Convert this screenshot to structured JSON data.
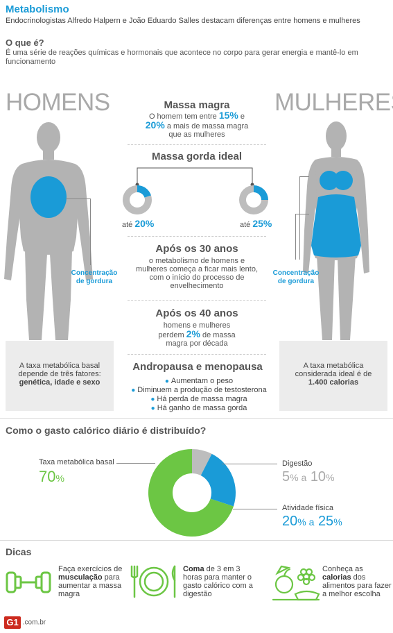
{
  "header": {
    "title": "Metabolismo",
    "subtitle": "Endocrinologistas Alfredo Halpern e João Eduardo Salles destacam diferenças entre homens e mulheres",
    "question": "O que é?",
    "answer": "É uma série de reações químicas e hormonais que acontece no corpo para gerar energia e mantê-lo em funcionamento"
  },
  "men": {
    "label": "HOMENS",
    "fat_label": "Concentração de gordura",
    "box_text_1": "A taxa metabólica basal depende de três fatores:",
    "box_text_2": "genética, idade e sexo"
  },
  "women": {
    "label": "MULHERES",
    "fat_label": "Concentração de gordura",
    "box_text_1": "A taxa metabólica considerada ideal é de",
    "box_text_2": "1.400 calorias"
  },
  "massa_magra": {
    "title": "Massa magra",
    "line1_pre": "O homem tem entre",
    "pct1": "15%",
    "line1_post": "e",
    "pct2": "20%",
    "line2_post": "a mais de massa magra",
    "line3": "que as mulheres"
  },
  "massa_gorda": {
    "title": "Massa gorda ideal",
    "men_prefix": "até",
    "men_value": "20%",
    "men_fraction": 0.2,
    "women_prefix": "até",
    "women_value": "25%",
    "women_fraction": 0.25
  },
  "apos30": {
    "title": "Após os 30 anos",
    "text": "o metabolismo de homens e mulheres começa a ficar mais lento, com o início do processo de envelhecimento"
  },
  "apos40": {
    "title": "Após os 40 anos",
    "line1": "homens e mulheres",
    "line2_pre": "perdem",
    "pct": "2%",
    "line2_post": "de massa",
    "line3": "magra por década"
  },
  "andropausa": {
    "title": "Andropausa e menopausa",
    "items": [
      "Aumentam o peso",
      "Diminuem a produção de testosterona",
      "Há perda de massa magra",
      "Há ganho de massa gorda"
    ]
  },
  "gasto": {
    "title": "Como o gasto calórico diário é distribuído?",
    "basal_label": "Taxa metabólica basal",
    "basal_value": "70",
    "basal_unit": "%",
    "digestao_label": "Digestão",
    "digestao_from": "5",
    "digestao_sep": "% a",
    "digestao_to": "10",
    "digestao_unit": "%",
    "atividade_label": "Atividade física",
    "atividade_from": "20",
    "atividade_sep": "% a",
    "atividade_to": "25",
    "atividade_unit": "%",
    "colors": {
      "basal": "#6cc644",
      "digestao": "#bdbdbd",
      "atividade": "#1a9bd7"
    }
  },
  "chart_data": {
    "type": "pie",
    "title": "Como o gasto calórico diário é distribuído?",
    "categories": [
      "Taxa metabólica basal",
      "Digestão",
      "Atividade física"
    ],
    "values": [
      70,
      7.5,
      22.5
    ]
  },
  "dicas": {
    "title": "Dicas",
    "tip1": {
      "pre": "Faça exercícios de",
      "bold": "musculação",
      "post": "para aumentar a massa magra"
    },
    "tip2": {
      "bold": "Coma",
      "post": "de 3 em 3 horas para manter o gasto calórico com a digestão"
    },
    "tip3": {
      "pre": "Conheça as",
      "bold": "calorias",
      "post": "dos alimentos para fazer a melhor escolha"
    }
  },
  "footer": {
    "logo": "G1",
    "domain": ".com.br"
  },
  "accent": "#1a9bd7",
  "body_gray": "#b3b3b3"
}
